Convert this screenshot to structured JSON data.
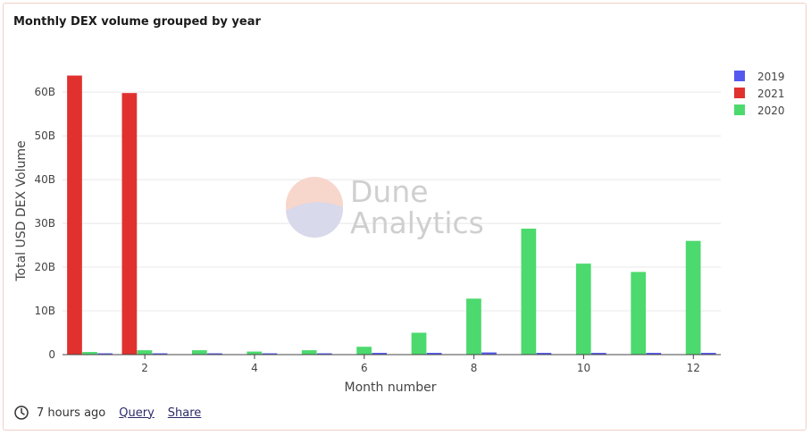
{
  "chart_data": {
    "type": "bar",
    "title": "Monthly DEX volume grouped by year",
    "xlabel": "Month number",
    "ylabel": "Total USD DEX Volume",
    "x": [
      1,
      2,
      3,
      4,
      5,
      6,
      7,
      8,
      9,
      10,
      11,
      12
    ],
    "xticks": [
      2,
      4,
      6,
      8,
      10,
      12
    ],
    "xlim": [
      0.5,
      12.5
    ],
    "ylim": [
      0,
      68
    ],
    "yticks": [
      0,
      10,
      20,
      30,
      40,
      50,
      60
    ],
    "ytick_labels": [
      "0",
      "10B",
      "20B",
      "30B",
      "40B",
      "50B",
      "60B"
    ],
    "unit_note": "values in billions USD",
    "grid": true,
    "legend_position": "top-right",
    "series": [
      {
        "name": "2019",
        "color": "#5558ee",
        "values": [
          0.3,
          0.3,
          0.3,
          0.3,
          0.3,
          0.4,
          0.4,
          0.5,
          0.4,
          0.4,
          0.4,
          0.4
        ]
      },
      {
        "name": "2021",
        "color": "#e0312e",
        "values": [
          63.8,
          59.8,
          null,
          null,
          null,
          null,
          null,
          null,
          null,
          null,
          null,
          null
        ]
      },
      {
        "name": "2020",
        "color": "#4cd96e",
        "values": [
          0.6,
          1.0,
          1.0,
          0.7,
          1.0,
          1.8,
          5.0,
          12.8,
          28.8,
          20.8,
          18.9,
          26.0
        ]
      }
    ]
  },
  "watermark": {
    "line1": "Dune",
    "line2": "Analytics"
  },
  "footer": {
    "time": "7 hours ago",
    "query_label": "Query",
    "share_label": "Share"
  }
}
